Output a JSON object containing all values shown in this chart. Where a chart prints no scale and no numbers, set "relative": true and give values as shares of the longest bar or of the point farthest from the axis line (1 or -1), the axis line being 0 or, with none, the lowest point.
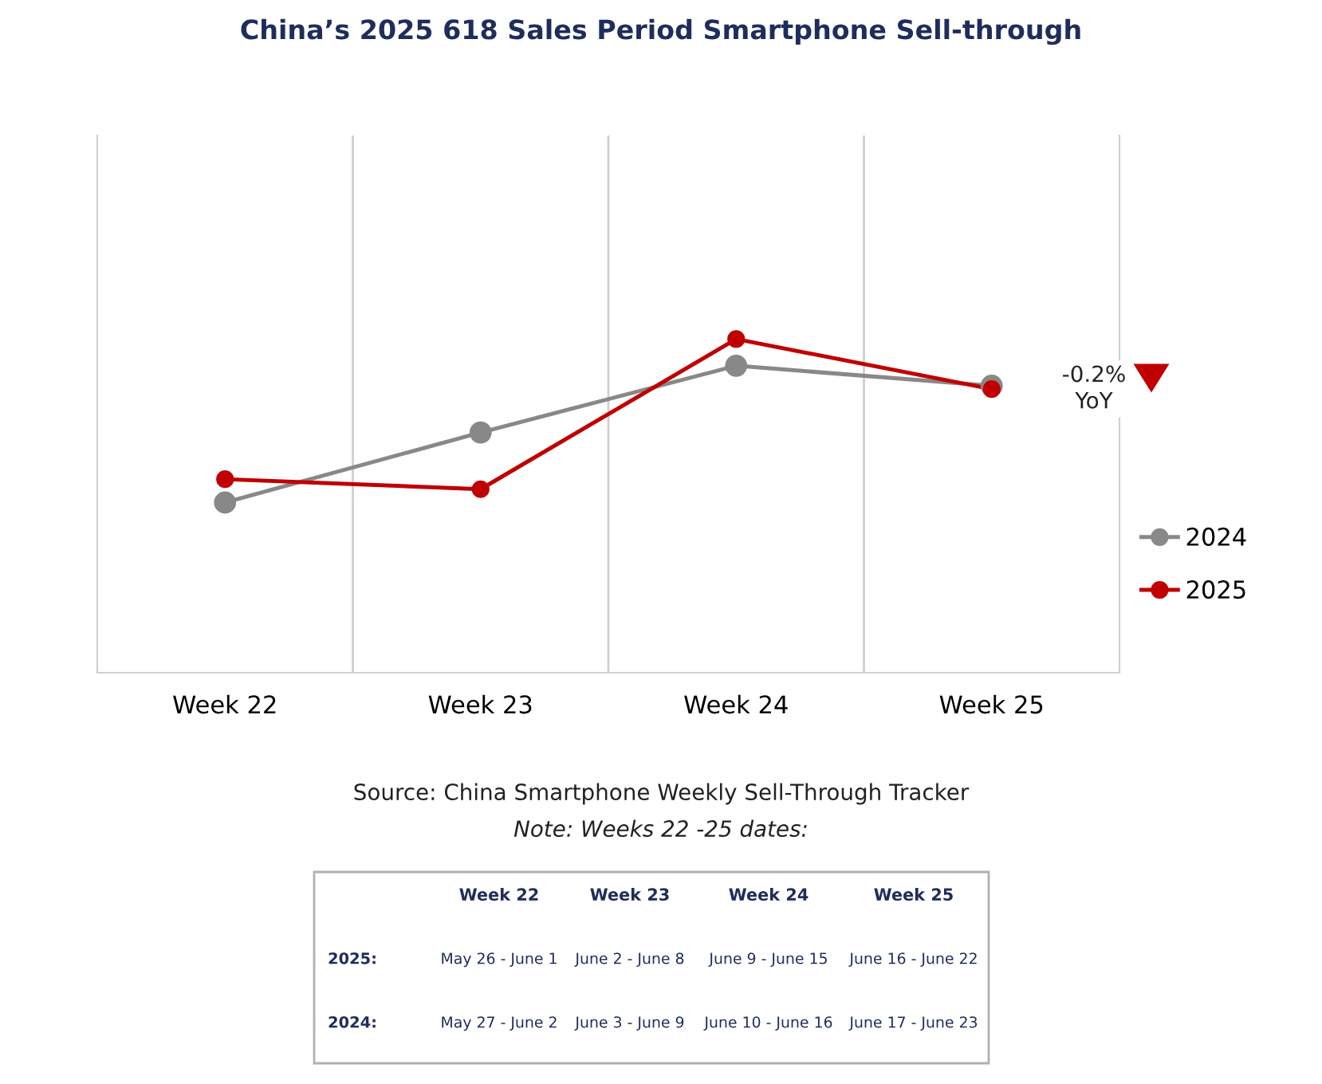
{
  "chart_data": {
    "type": "line",
    "title": "China’s 2025 618 Sales Period Smartphone Sell-through",
    "categories": [
      "Week 22",
      "Week 23",
      "Week 24",
      "Week 25"
    ],
    "relative": true,
    "series": [
      {
        "name": "2024",
        "color": "#888888",
        "values": [
          0.51,
          0.72,
          0.92,
          0.86
        ]
      },
      {
        "name": "2025",
        "color": "#c00000",
        "values": [
          0.58,
          0.55,
          1,
          0.85
        ]
      }
    ],
    "marker": "circle",
    "line_style": "solid",
    "grid": "x",
    "legend": "right",
    "annotations": [
      "-0.2%\nYoY",
      "Source: China Smartphone Weekly Sell-Through Tracker",
      "Note: Weeks 22 -25 dates:",
      "Week 22",
      "Week 23",
      "Week 24",
      "Week 25",
      "2025:",
      "May 26 - June 1",
      "June 2 - June 8",
      "June 9 - June 15",
      "June 16 - June 22",
      "2024:",
      "May 27 - June 2",
      "June 3 - June 9",
      "June 10 - June 16",
      "June 17 - June 23"
    ]
  }
}
